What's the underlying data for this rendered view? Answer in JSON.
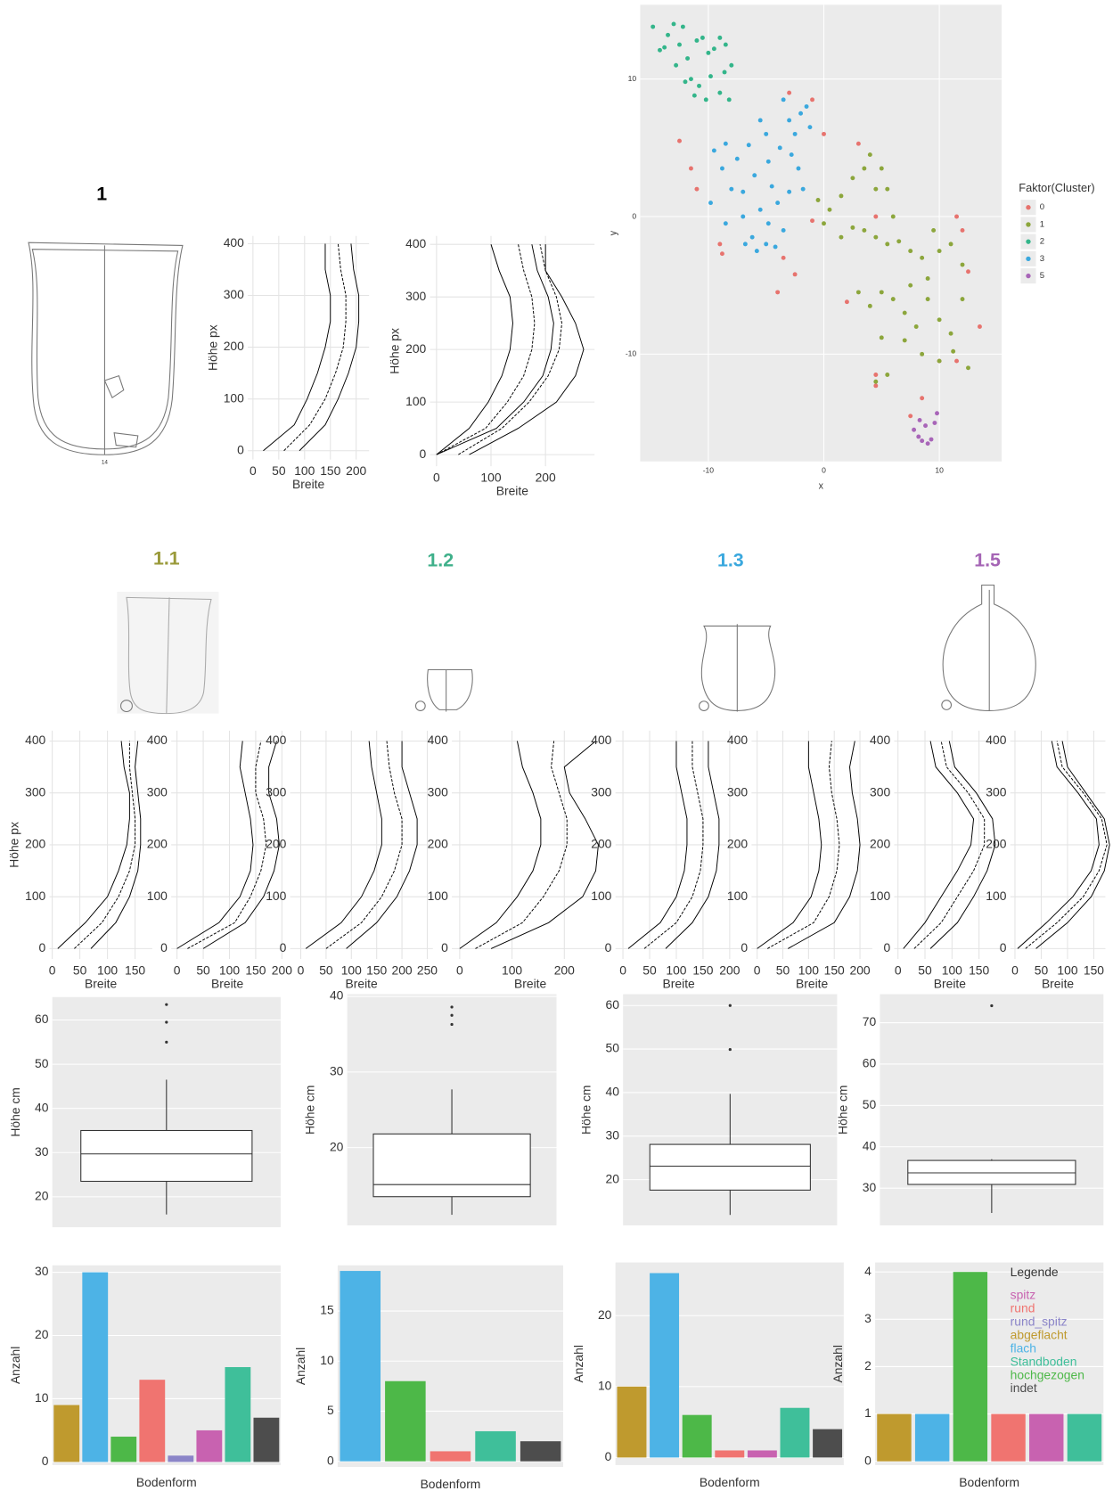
{
  "group_labels": [
    {
      "text": "1",
      "color": "#000000"
    },
    {
      "text": "1.1",
      "color": "#9a9a3a"
    },
    {
      "text": "1.2",
      "color": "#3fb08a"
    },
    {
      "text": "1.3",
      "color": "#3aa8de"
    },
    {
      "text": "1.5",
      "color": "#a565b5"
    }
  ],
  "vessel_number": "14",
  "chart_data": [
    {
      "type": "profile",
      "xlabel": "Breite",
      "ylabel": "Höhe px",
      "xlim": [
        -10,
        225
      ],
      "ylim": [
        -17,
        415
      ],
      "xticks": [
        0,
        50,
        100,
        150,
        200
      ],
      "yticks": [
        0,
        100,
        200,
        300,
        400
      ],
      "heights": [
        0,
        50,
        100,
        150,
        200,
        250,
        300,
        350,
        400
      ],
      "lines": [
        [
          20,
          80,
          105,
          125,
          140,
          150,
          150,
          140,
          140
        ],
        [
          60,
          110,
          140,
          160,
          175,
          180,
          180,
          170,
          165
        ],
        [
          90,
          140,
          165,
          185,
          200,
          205,
          205,
          195,
          190
        ]
      ]
    },
    {
      "type": "profile",
      "xlabel": "Breite",
      "ylabel": "Höhe px",
      "xlim": [
        -12,
        290
      ],
      "ylim": [
        -22,
        416
      ],
      "xticks": [
        0,
        100,
        200
      ],
      "yticks": [
        0,
        100,
        200,
        300,
        400
      ],
      "heights": [
        0,
        50,
        100,
        150,
        200,
        250,
        300,
        350,
        400
      ],
      "lines": [
        [
          0,
          60,
          95,
          120,
          135,
          140,
          135,
          115,
          100
        ],
        [
          0,
          90,
          130,
          160,
          175,
          180,
          175,
          160,
          150
        ],
        [
          0,
          110,
          160,
          195,
          210,
          215,
          205,
          185,
          175
        ],
        [
          40,
          120,
          170,
          205,
          225,
          230,
          220,
          200,
          190
        ],
        [
          60,
          150,
          220,
          255,
          270,
          255,
          230,
          200,
          200
        ]
      ]
    },
    {
      "type": "scatter",
      "xlabel": "x",
      "ylabel": "y",
      "xlim": [
        -15.9,
        15.4
      ],
      "ylim": [
        -17.8,
        15.4
      ],
      "xticks": [
        -10,
        0,
        10
      ],
      "yticks": [
        -10,
        0,
        10
      ],
      "legend_title": "Faktor(Cluster)",
      "series": [
        {
          "name": "0",
          "color": "#e7736e",
          "x": [
            -12.5,
            -11.5,
            -11,
            -9,
            -8.8,
            -3.5,
            -2.5,
            -4,
            -3,
            -1,
            0,
            3,
            4.5,
            -1,
            2,
            11.5,
            12,
            12.5,
            13.5,
            4.5,
            4.5,
            10,
            11.5,
            8.5,
            7.5
          ],
          "y": [
            5.5,
            3.5,
            2,
            -2,
            -2.7,
            -3,
            -4.2,
            -5.5,
            9,
            8.5,
            6,
            5.3,
            0,
            -0.3,
            -6.2,
            0,
            -1,
            -4,
            -8,
            -11.5,
            -12.3,
            -10.5,
            -10.5,
            -13.2,
            -14.5
          ]
        },
        {
          "name": "1",
          "color": "#8ca63c",
          "x": [
            -0.5,
            0.5,
            1.5,
            2.5,
            3.5,
            4,
            4.5,
            5,
            5.5,
            6,
            0,
            1.5,
            2.5,
            3.5,
            4.5,
            5.5,
            6.5,
            7.5,
            8.5,
            9.5,
            10,
            11,
            12,
            3,
            4,
            5,
            6,
            7,
            8,
            9,
            10,
            11,
            12,
            5,
            7,
            8.5,
            10,
            11.2,
            12.5,
            5.5,
            4.5,
            9,
            7.5
          ],
          "y": [
            1.2,
            0.5,
            1.5,
            2.8,
            3.5,
            4.5,
            2,
            3.5,
            2,
            0,
            -0.5,
            -1.5,
            -0.8,
            -1,
            -1.5,
            -2,
            -1.8,
            -2.5,
            -3,
            -1,
            -2.5,
            -2,
            -3.5,
            -5.5,
            -6.5,
            -5.5,
            -6,
            -7,
            -8,
            -6,
            -7.5,
            -8.5,
            -6,
            -8.8,
            -9,
            -10,
            -10.5,
            -9.8,
            -11,
            -11.5,
            -12,
            -4.5,
            -5
          ]
        },
        {
          "name": "2",
          "color": "#33b58a",
          "x": [
            -14.8,
            -14.2,
            -13.5,
            -13,
            -12.2,
            -12.5,
            -11.8,
            -11,
            -10.5,
            -10,
            -9.5,
            -9,
            -8.5,
            -8,
            -11.5,
            -10.8,
            -9.8,
            -9,
            -8.2,
            -12,
            -10.2,
            -11.2,
            -13.8,
            -12.8,
            -8.6
          ],
          "y": [
            13.8,
            12.1,
            13.2,
            14,
            13.8,
            12.5,
            11.5,
            12.8,
            13,
            11.9,
            12.2,
            13,
            12.5,
            11,
            10,
            9.5,
            10.2,
            9,
            8.5,
            9.8,
            8.5,
            8.8,
            12.3,
            11,
            10.5
          ]
        },
        {
          "name": "3",
          "color": "#3aa8de",
          "x": [
            -9.5,
            -8.5,
            -7.5,
            -6.5,
            -5.5,
            -5,
            -4.8,
            -3.5,
            -3,
            -2.5,
            -2,
            -1.5,
            -1.2,
            -3.8,
            -2.8,
            -4.5,
            -6,
            -7,
            -8,
            -8.8,
            -9.8,
            -8.5,
            -7,
            -6.2,
            -5.5,
            -4.8,
            -5,
            -4.2,
            -3.5,
            -3,
            -2.2,
            -1.8,
            -6.8,
            -5.8,
            -4
          ],
          "y": [
            4.8,
            5.3,
            4.2,
            5.2,
            7,
            6,
            4,
            8.5,
            7,
            6,
            7.5,
            8,
            6.5,
            5,
            4.5,
            2.2,
            3,
            1.8,
            2,
            3.5,
            1,
            -0.5,
            0,
            -1.5,
            0.5,
            -0.5,
            -2,
            -2.2,
            -1,
            1.8,
            3.5,
            2,
            -2,
            -2.5,
            1
          ]
        },
        {
          "name": "5",
          "color": "#a865b8",
          "x": [
            7.8,
            8.2,
            8.5,
            8.8,
            9,
            9.3,
            9.6,
            9.8,
            8.3
          ],
          "y": [
            -15.5,
            -16,
            -16.3,
            -15.2,
            -16.5,
            -16.2,
            -15,
            -14.3,
            -14.8
          ]
        }
      ]
    },
    {
      "type": "profile",
      "xlabel": "Breite",
      "ylabel": "Höhe px",
      "xlim": [
        -5,
        181
      ],
      "ylim": [
        -20,
        420
      ],
      "xticks": [
        0,
        50,
        100,
        150
      ],
      "yticks": [
        0,
        100,
        200,
        300,
        400
      ],
      "heights": [
        0,
        50,
        100,
        150,
        200,
        250,
        300,
        350,
        400
      ],
      "lines": [
        [
          10,
          60,
          100,
          120,
          135,
          140,
          140,
          130,
          125
        ],
        [
          40,
          90,
          120,
          140,
          150,
          150,
          145,
          140,
          140
        ],
        [
          70,
          115,
          140,
          155,
          160,
          160,
          155,
          150,
          155
        ]
      ]
    },
    {
      "type": "profile",
      "xlabel": "Breite",
      "xlim": [
        -11,
        203
      ],
      "ylim": [
        -20,
        420
      ],
      "xticks": [
        0,
        50,
        100,
        150,
        200
      ],
      "yticks": [
        0,
        100,
        200,
        300,
        400
      ],
      "heights": [
        0,
        50,
        100,
        150,
        200,
        250,
        300,
        350,
        400
      ],
      "lines": [
        [
          0,
          80,
          120,
          140,
          145,
          140,
          130,
          120,
          125
        ],
        [
          20,
          110,
          140,
          160,
          170,
          165,
          150,
          150,
          160
        ],
        [
          50,
          130,
          165,
          185,
          195,
          190,
          175,
          175,
          190
        ]
      ]
    },
    {
      "type": "profile",
      "xlabel": "Breite",
      "xlim": [
        -21,
        261
      ],
      "ylim": [
        -20,
        420
      ],
      "xticks": [
        0,
        50,
        100,
        150,
        200,
        250
      ],
      "yticks": [
        0,
        100,
        200,
        300,
        400
      ],
      "heights": [
        0,
        50,
        100,
        150,
        200,
        250,
        300,
        350,
        400
      ],
      "lines": [
        [
          10,
          80,
          120,
          145,
          160,
          160,
          150,
          140,
          135
        ],
        [
          50,
          120,
          160,
          185,
          200,
          200,
          185,
          175,
          170
        ],
        [
          90,
          150,
          190,
          215,
          230,
          230,
          215,
          200,
          200
        ]
      ]
    },
    {
      "type": "profile",
      "xlabel": "Breite",
      "xlim": [
        -15,
        285
      ],
      "ylim": [
        -20,
        420
      ],
      "xticks": [
        0,
        100,
        200
      ],
      "yticks": [
        0,
        100,
        200,
        300,
        400
      ],
      "heights": [
        0,
        50,
        100,
        150,
        200,
        250,
        300,
        350,
        400
      ],
      "lines": [
        [
          0,
          70,
          110,
          140,
          155,
          155,
          140,
          120,
          110
        ],
        [
          30,
          120,
          160,
          190,
          205,
          205,
          190,
          175,
          180
        ],
        [
          60,
          170,
          235,
          260,
          265,
          240,
          210,
          200,
          260
        ]
      ]
    },
    {
      "type": "profile",
      "xlabel": "Breite",
      "xlim": [
        -14,
        223
      ],
      "ylim": [
        -20,
        420
      ],
      "xticks": [
        0,
        50,
        100,
        150,
        200
      ],
      "yticks": [
        0,
        100,
        200,
        300,
        400
      ],
      "heights": [
        0,
        50,
        100,
        150,
        200,
        250,
        300,
        350,
        400
      ],
      "lines": [
        [
          10,
          70,
          100,
          115,
          120,
          120,
          110,
          100,
          100
        ],
        [
          40,
          100,
          130,
          145,
          150,
          150,
          140,
          130,
          130
        ],
        [
          80,
          130,
          160,
          175,
          180,
          180,
          170,
          160,
          160
        ]
      ]
    },
    {
      "type": "profile",
      "xlabel": "Breite",
      "xlim": [
        -11,
        224
      ],
      "ylim": [
        -20,
        420
      ],
      "xticks": [
        0,
        50,
        100,
        150,
        200
      ],
      "yticks": [
        0,
        100,
        200,
        300,
        400
      ],
      "heights": [
        0,
        50,
        100,
        150,
        200,
        250,
        300,
        350,
        400
      ],
      "lines": [
        [
          0,
          70,
          105,
          120,
          125,
          120,
          110,
          100,
          100
        ],
        [
          20,
          110,
          140,
          155,
          160,
          155,
          145,
          140,
          145
        ],
        [
          60,
          150,
          180,
          195,
          200,
          195,
          185,
          180,
          190
        ]
      ]
    },
    {
      "type": "profile",
      "xlabel": "Breite",
      "xlim": [
        -7,
        199
      ],
      "ylim": [
        -20,
        420
      ],
      "xticks": [
        0,
        50,
        100,
        150
      ],
      "yticks": [
        0,
        100,
        200,
        300,
        400
      ],
      "heights": [
        0,
        50,
        100,
        150,
        200,
        250,
        300,
        350,
        400
      ],
      "lines": [
        [
          10,
          50,
          80,
          110,
          135,
          140,
          110,
          70,
          60
        ],
        [
          30,
          80,
          110,
          140,
          160,
          160,
          130,
          90,
          80
        ],
        [
          60,
          110,
          140,
          165,
          180,
          175,
          145,
          105,
          95
        ]
      ]
    },
    {
      "type": "profile",
      "xlabel": "Breite",
      "xlim": [
        -9,
        172
      ],
      "ylim": [
        -20,
        420
      ],
      "xticks": [
        0,
        50,
        100,
        150
      ],
      "yticks": [
        0,
        100,
        200,
        300,
        400
      ],
      "heights": [
        0,
        50,
        100,
        150,
        200,
        250,
        300,
        350,
        400
      ],
      "lines": [
        [
          5,
          60,
          110,
          145,
          160,
          155,
          120,
          80,
          70
        ],
        [
          20,
          80,
          130,
          160,
          175,
          165,
          130,
          90,
          80
        ],
        [
          40,
          100,
          145,
          170,
          180,
          170,
          135,
          100,
          90
        ]
      ]
    },
    {
      "type": "box",
      "ylabel": "Höhe cm",
      "ylim": [
        13.1,
        65.2
      ],
      "yticks": [
        20,
        30,
        40,
        50,
        60
      ],
      "min": 16,
      "q1": 23.5,
      "median": 29.7,
      "q3": 35,
      "max": 46.5,
      "outliers": [
        55,
        59.5,
        63.5
      ]
    },
    {
      "type": "box",
      "ylabel": "Höhe cm",
      "ylim": [
        9.7,
        40.3
      ],
      "yticks": [
        20,
        30,
        40
      ],
      "min": 11.1,
      "q1": 13.5,
      "median": 15.1,
      "q3": 21.8,
      "max": 27.7,
      "outliers": [
        36.3,
        37.5,
        38.6
      ]
    },
    {
      "type": "box",
      "ylabel": "Höhe cm",
      "ylim": [
        9.5,
        62.6
      ],
      "yticks": [
        20,
        30,
        40,
        50,
        60
      ],
      "min": 11.9,
      "q1": 17.6,
      "median": 23.1,
      "q3": 28.1,
      "max": 39.7,
      "outliers": [
        49.9,
        60
      ]
    },
    {
      "type": "box",
      "ylabel": "Höhe cm",
      "ylim": [
        21,
        76.9
      ],
      "yticks": [
        30,
        40,
        50,
        60,
        70
      ],
      "min": 24,
      "q1": 30.9,
      "median": 33.7,
      "q3": 36.7,
      "max": 37,
      "outliers": [
        74.1
      ]
    },
    {
      "type": "bar",
      "xlabel": "Bodenform",
      "ylabel": "Anzahl",
      "ylim": [
        -0.5,
        31.1
      ],
      "yticks": [
        0,
        10,
        20,
        30
      ],
      "values": [
        9,
        30,
        4,
        13,
        1,
        5,
        15,
        7
      ],
      "colors": [
        "#bf9a2e",
        "#4db3e6",
        "#4db848",
        "#f07470",
        "#8b85c8",
        "#c862b0",
        "#3fbf9a",
        "#4d4d4d"
      ]
    },
    {
      "type": "bar",
      "xlabel": "Bodenform",
      "ylabel": "Anzahl",
      "ylim": [
        -0.57,
        19.56
      ],
      "yticks": [
        0,
        5,
        10,
        15
      ],
      "values": [
        19,
        8,
        1,
        3,
        2
      ],
      "colors": [
        "#4db3e6",
        "#4db848",
        "#f07470",
        "#3fbf9a",
        "#4d4d4d"
      ]
    },
    {
      "type": "bar",
      "xlabel": "Bodenform",
      "ylabel": "Anzahl",
      "ylim": [
        -1.07,
        27.5
      ],
      "yticks": [
        0,
        10,
        20
      ],
      "values": [
        10,
        26,
        6,
        1,
        1,
        7,
        4
      ],
      "colors": [
        "#bf9a2e",
        "#4db3e6",
        "#4db848",
        "#f07470",
        "#c862b0",
        "#3fbf9a",
        "#4d4d4d"
      ]
    },
    {
      "type": "bar",
      "xlabel": "Bodenform",
      "ylabel": "Anzahl",
      "ylim": [
        -0.08,
        4.2
      ],
      "yticks": [
        0,
        1,
        2,
        3,
        4
      ],
      "values": [
        1,
        1,
        4,
        1,
        1,
        1
      ],
      "colors": [
        "#bf9a2e",
        "#4db3e6",
        "#4db848",
        "#f07470",
        "#c862b0",
        "#3fbf9a"
      ],
      "legend_title": "Legende",
      "legend": [
        {
          "name": "spitz",
          "color": "#c862b0"
        },
        {
          "name": "rund",
          "color": "#f07470"
        },
        {
          "name": "rund_spitz",
          "color": "#8b85c8"
        },
        {
          "name": "abgeflacht",
          "color": "#bf9a2e"
        },
        {
          "name": "flach",
          "color": "#4db3e6"
        },
        {
          "name": "Standboden",
          "color": "#3fbf9a"
        },
        {
          "name": "hochgezogen",
          "color": "#4db848"
        },
        {
          "name": "indet",
          "color": "#4d4d4d"
        }
      ]
    }
  ]
}
